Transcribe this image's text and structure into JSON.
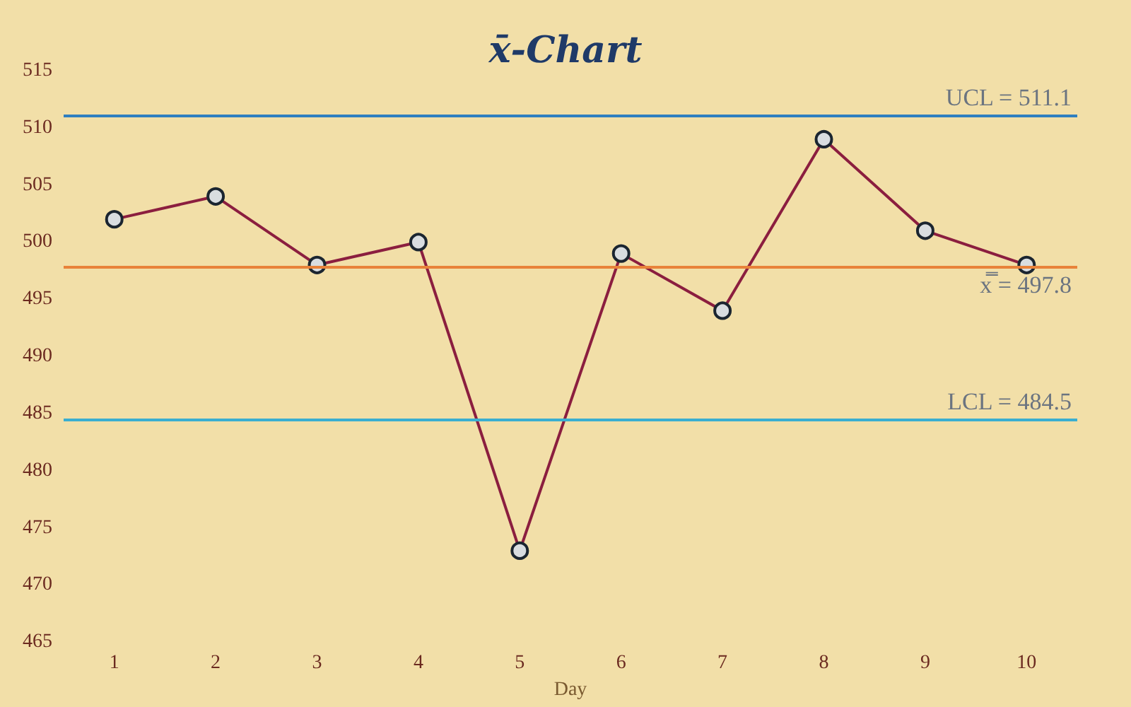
{
  "chart_data": {
    "type": "line",
    "title": "x̄-Chart",
    "xlabel": "Day",
    "categories": [
      "1",
      "2",
      "3",
      "4",
      "5",
      "6",
      "7",
      "8",
      "9",
      "10"
    ],
    "series": [
      {
        "color": "#8b1e3f",
        "values": [
          502,
          504,
          498,
          500,
          473,
          499,
          494,
          509,
          501,
          498
        ]
      }
    ],
    "ylim": [
      465,
      515
    ],
    "yticks": [
      465,
      470,
      475,
      480,
      485,
      490,
      495,
      500,
      505,
      510,
      515
    ],
    "ref_lines": [
      {
        "axis": "y",
        "value": 511.1,
        "label": "UCL = 511.1",
        "color": "#2f7fc0"
      },
      {
        "axis": "y",
        "value": 497.8,
        "label": "x̿ = 497.8",
        "color": "#e8823a"
      },
      {
        "axis": "y",
        "value": 484.5,
        "label": "LCL = 484.5",
        "color": "#3aaed0"
      }
    ],
    "marker": "circle",
    "line_style": "solid",
    "grid": false
  }
}
